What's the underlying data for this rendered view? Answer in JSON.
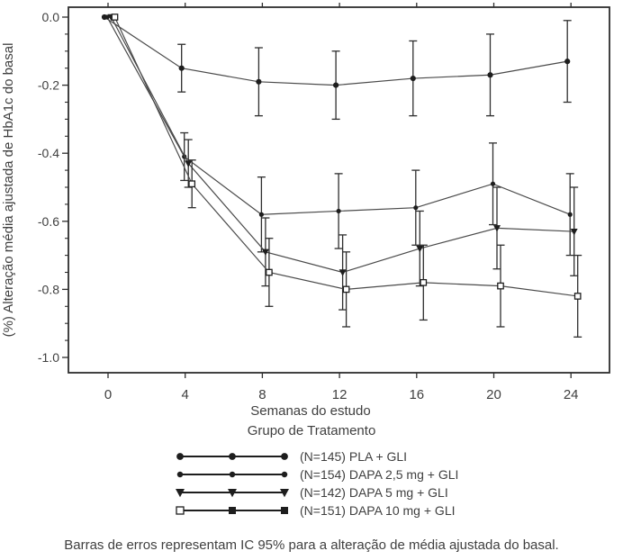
{
  "colors": {
    "ink": "#2e2e2e",
    "line": "#4a4a4a",
    "marker": "#1e1e1e",
    "text": "#3f3f3f",
    "background": "#ffffff"
  },
  "chart_data": {
    "type": "line",
    "title": "",
    "xlabel": "Semanas do estudo",
    "ylabel": "(%) Alteração média ajustada de HbA1c do basal",
    "legend_title": "Grupo de Tratamento",
    "footnote": "Barras de erros representam IC 95% para a alteração de média ajustada do basal.",
    "error_bar_meaning": "IC 95%",
    "grid": false,
    "legend_position": "bottom",
    "x": [
      0,
      4,
      8,
      12,
      16,
      20,
      24
    ],
    "x_tick_labels": [
      "0",
      "4",
      "8",
      "12",
      "16",
      "20",
      "24"
    ],
    "y_ticks": [
      0.0,
      -0.2,
      -0.4,
      -0.6,
      -0.8,
      -1.0
    ],
    "y_tick_labels": [
      "0.0",
      "-0.2",
      "-0.4",
      "-0.6",
      "-0.8",
      "-1.0"
    ],
    "y_minor_step": 0.05,
    "ylim": [
      -1.05,
      0.03
    ],
    "xlim": [
      -2.1,
      26.3
    ],
    "series": [
      {
        "name": "(N=145) PLA + GLI",
        "marker": "circle",
        "legend_markers": [
          "circle",
          "circle",
          "circle"
        ],
        "values": [
          0.0,
          -0.15,
          -0.19,
          -0.2,
          -0.18,
          -0.17,
          -0.13
        ],
        "ci_half_width": [
          0,
          0.07,
          0.1,
          0.1,
          0.11,
          0.12,
          0.12
        ]
      },
      {
        "name": "(N=154) DAPA 2,5 mg + GLI",
        "marker": "circle-small",
        "legend_markers": [
          "circle-small",
          "circle-small",
          "circle-small"
        ],
        "values": [
          0.0,
          -0.41,
          -0.58,
          -0.57,
          -0.56,
          -0.49,
          -0.58
        ],
        "ci_half_width": [
          0,
          0.07,
          0.11,
          0.11,
          0.11,
          0.12,
          0.12
        ]
      },
      {
        "name": "(N=142) DAPA 5 mg + GLI",
        "marker": "triangle-down",
        "legend_markers": [
          "triangle-down",
          "triangle-down",
          "triangle-down"
        ],
        "values": [
          0.0,
          -0.43,
          -0.69,
          -0.75,
          -0.68,
          -0.62,
          -0.63
        ],
        "ci_half_width": [
          0,
          0.07,
          0.1,
          0.11,
          0.11,
          0.12,
          0.13
        ]
      },
      {
        "name": "(N=151) DAPA 10 mg + GLI",
        "marker": "square-open",
        "legend_markers": [
          "square-open",
          "square",
          "square"
        ],
        "values": [
          0.0,
          -0.49,
          -0.75,
          -0.8,
          -0.78,
          -0.79,
          -0.82
        ],
        "ci_half_width": [
          0,
          0.07,
          0.1,
          0.11,
          0.11,
          0.12,
          0.12
        ]
      }
    ]
  }
}
